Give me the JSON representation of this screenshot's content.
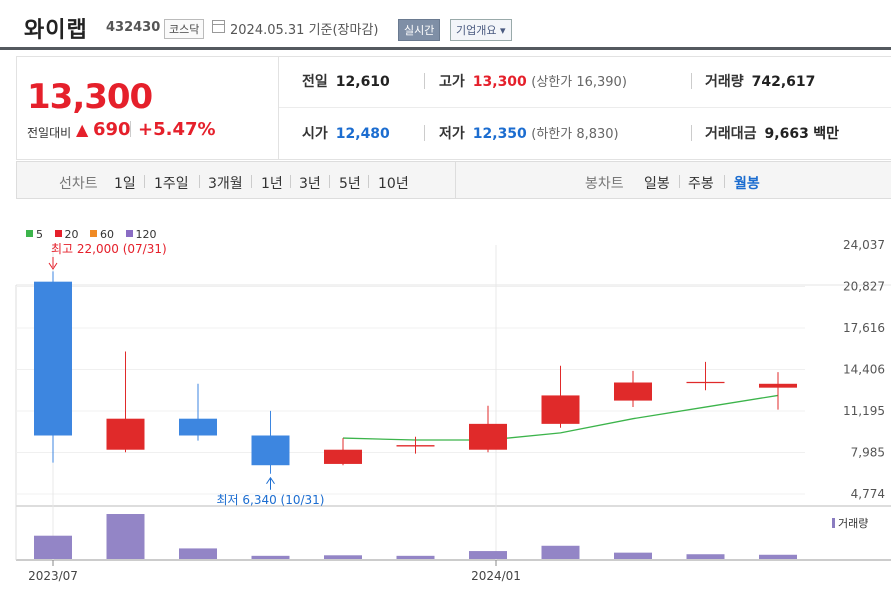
{
  "header": {
    "name": "와이랩",
    "code": "432430",
    "market": "코스닥",
    "date": "2024.05.31 기준(장마감)",
    "realtime": "실시간",
    "overview": "기업개요 ▾"
  },
  "summary": {
    "price": "13,300",
    "change_label": "전일대비",
    "change_symbol": "▲",
    "change_value": "690",
    "change_pct": "+5.47%",
    "prev_label": "전일",
    "prev": "12,610",
    "high_label": "고가",
    "high": "13,300",
    "upper_limit": "(상한가 16,390)",
    "volume_label": "거래량",
    "volume": "742,617",
    "open_label": "시가",
    "open": "12,480",
    "low_label": "저가",
    "low": "12,350",
    "lower_limit": "(하한가 8,830)",
    "amount_label": "거래대금",
    "amount": "9,663",
    "amount_unit": "백만"
  },
  "period_bar": {
    "line_label": "선차트",
    "line_options": [
      "1일",
      "1주일",
      "3개월",
      "1년",
      "3년",
      "5년",
      "10년"
    ],
    "candle_label": "봉차트",
    "candle_options": [
      "일봉",
      "주봉",
      "월봉"
    ],
    "active_candle": "월봉"
  },
  "legend": [
    {
      "label": "5",
      "color": "#3cb44b"
    },
    {
      "label": "20",
      "color": "#e5202b"
    },
    {
      "label": "60",
      "color": "#f08a24"
    },
    {
      "label": "120",
      "color": "#8a6cc4"
    }
  ],
  "chart_data": {
    "type": "candlestick",
    "y_ticks": [
      "24,037",
      "20,827",
      "17,616",
      "14,406",
      "11,195",
      "7,985",
      "4,774"
    ],
    "x_labels": [
      {
        "index": 0,
        "text": "2023/07"
      },
      {
        "index": 6,
        "text": "2024/01"
      }
    ],
    "annotations": {
      "max": {
        "index": 0,
        "text": "최고 22,000 (07/31)",
        "value": 22000
      },
      "min": {
        "index": 3,
        "text": "최저 6,340 (10/31)",
        "value": 6340
      }
    },
    "up_color": "#e02a2a",
    "down_color": "#3d86e0",
    "candles": [
      {
        "open": 21200,
        "high": 22000,
        "low": 7200,
        "close": 9300
      },
      {
        "open": 8200,
        "high": 15800,
        "low": 8000,
        "close": 10600
      },
      {
        "open": 10600,
        "high": 13300,
        "low": 8900,
        "close": 9300
      },
      {
        "open": 9300,
        "high": 11200,
        "low": 6340,
        "close": 7000
      },
      {
        "open": 7100,
        "high": 9100,
        "low": 7000,
        "close": 8200
      },
      {
        "open": 8500,
        "high": 9200,
        "low": 7900,
        "close": 8500
      },
      {
        "open": 8200,
        "high": 11600,
        "low": 8000,
        "close": 10200
      },
      {
        "open": 10200,
        "high": 14700,
        "low": 9900,
        "close": 12400
      },
      {
        "open": 12000,
        "high": 14300,
        "low": 11500,
        "close": 13400
      },
      {
        "open": 13400,
        "high": 15000,
        "low": 12800,
        "close": 13400
      },
      {
        "open": 13000,
        "high": 14200,
        "low": 11300,
        "close": 13300
      }
    ],
    "ma5": [
      null,
      null,
      null,
      null,
      9100,
      8950,
      8950,
      9500,
      10600,
      11500,
      12400
    ],
    "ma5_color": "#3cb44b",
    "volume_label": "거래량",
    "volume_color": "#9385c6",
    "volumes": [
      44,
      85,
      20,
      6,
      7,
      6,
      15,
      25,
      12,
      9,
      8
    ]
  }
}
